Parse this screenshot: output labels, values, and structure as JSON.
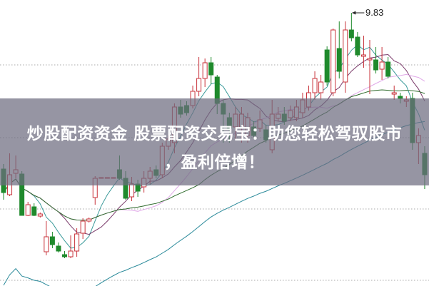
{
  "banner": {
    "line1": "炒股配资资金 股票配资交易宝：助您轻松驾驭股市",
    "line2": "，盈利倍增！"
  },
  "chart_data": {
    "type": "candlestick",
    "title": "",
    "xlabel": "",
    "ylabel": "",
    "ylim": [
      6.0,
      10.01
    ],
    "grid": "horizontal-dotted",
    "gridlines": [
      9.1,
      8.08,
      7.08,
      6.08
    ],
    "annotation": {
      "label": "9.83",
      "value": 9.83
    },
    "colors": {
      "up": "#c8323a",
      "down": "#1f8a2c"
    },
    "candles": [
      [
        7.64,
        7.71,
        7.21,
        7.31
      ],
      [
        7.28,
        7.86,
        7.26,
        7.56
      ],
      [
        7.58,
        7.83,
        7.51,
        7.63
      ],
      [
        7.57,
        7.61,
        6.99,
        6.99
      ],
      [
        6.99,
        7.18,
        6.98,
        7.14
      ],
      [
        7.11,
        7.16,
        6.98,
        6.99
      ],
      [
        6.98,
        7.03,
        6.96,
        7.01
      ],
      [
        6.48,
        6.91,
        6.43,
        6.69
      ],
      [
        6.69,
        6.76,
        6.53,
        6.58
      ],
      [
        6.56,
        6.61,
        6.47,
        6.49
      ],
      [
        6.44,
        6.49,
        6.39,
        6.41
      ],
      [
        6.41,
        6.71,
        6.39,
        6.49
      ],
      [
        6.49,
        6.81,
        6.41,
        6.73
      ],
      [
        6.74,
        6.95,
        6.66,
        6.91
      ],
      [
        6.91,
        6.96,
        6.89,
        6.94
      ],
      [
        7.24,
        7.54,
        7.14,
        7.51
      ],
      [
        7.51,
        7.52,
        7.51,
        7.52
      ],
      [
        7.51,
        7.52,
        7.51,
        7.52
      ],
      [
        7.51,
        7.52,
        7.51,
        7.52
      ],
      [
        7.63,
        7.83,
        7.49,
        7.51
      ],
      [
        7.51,
        7.61,
        7.21,
        7.23
      ],
      [
        7.25,
        7.53,
        7.19,
        7.43
      ],
      [
        7.43,
        7.49,
        7.25,
        7.33
      ],
      [
        7.39,
        7.61,
        7.31,
        7.51
      ],
      [
        7.51,
        7.67,
        7.43,
        7.61
      ],
      [
        7.63,
        7.69,
        7.51,
        7.55
      ],
      [
        7.56,
        8.01,
        7.51,
        7.96
      ],
      [
        7.96,
        8.11,
        7.91,
        8.06
      ],
      [
        8.01,
        8.56,
        7.86,
        8.51
      ],
      [
        8.51,
        8.61,
        8.36,
        8.41
      ],
      [
        8.53,
        8.59,
        8.39,
        8.43
      ],
      [
        8.53,
        8.81,
        8.49,
        8.73
      ],
      [
        8.73,
        9.21,
        8.66,
        8.91
      ],
      [
        8.91,
        9.19,
        8.79,
        9.13
      ],
      [
        9.13,
        9.21,
        8.83,
        8.96
      ],
      [
        8.93,
        8.96,
        8.41,
        8.56
      ],
      [
        8.56,
        8.61,
        8.01,
        8.41
      ],
      [
        8.36,
        8.43,
        8.01,
        8.21
      ],
      [
        8.23,
        8.51,
        8.06,
        8.41
      ],
      [
        8.21,
        8.51,
        8.01,
        8.41
      ],
      [
        8.11,
        8.43,
        8.01,
        8.36
      ],
      [
        8.23,
        8.31,
        8.06,
        8.11
      ],
      [
        8.21,
        8.46,
        8.16,
        8.33
      ],
      [
        8.19,
        8.26,
        8.01,
        8.05
      ],
      [
        7.91,
        8.61,
        7.86,
        8.41
      ],
      [
        8.35,
        8.51,
        8.31,
        8.41
      ],
      [
        8.41,
        8.51,
        8.26,
        8.31
      ],
      [
        8.36,
        8.53,
        8.31,
        8.46
      ],
      [
        8.36,
        8.61,
        8.31,
        8.51
      ],
      [
        8.43,
        8.71,
        8.36,
        8.61
      ],
      [
        8.51,
        8.81,
        8.46,
        8.71
      ],
      [
        8.71,
        9.01,
        8.61,
        8.91
      ],
      [
        8.71,
        8.96,
        8.61,
        8.86
      ],
      [
        9.31,
        9.36,
        8.81,
        8.86
      ],
      [
        8.71,
        9.61,
        8.66,
        9.59
      ],
      [
        9.33,
        9.71,
        8.91,
        9.01
      ],
      [
        8.86,
        9.71,
        8.71,
        9.59
      ],
      [
        9.59,
        9.83,
        9.43,
        9.48
      ],
      [
        9.49,
        9.56,
        9.21,
        9.24
      ],
      [
        9.22,
        9.51,
        9.06,
        9.24
      ],
      [
        9.17,
        9.45,
        8.69,
        9.19
      ],
      [
        9.17,
        9.35,
        8.98,
        9.03
      ],
      [
        9.04,
        9.35,
        8.89,
        9.14
      ],
      [
        9.14,
        9.21,
        8.91,
        8.94
      ],
      [
        8.69,
        8.81,
        8.61,
        8.71
      ],
      [
        8.66,
        8.71,
        8.56,
        8.63
      ],
      [
        8.59,
        8.66,
        8.51,
        8.61
      ],
      [
        8.63,
        8.71,
        7.91,
        8.01
      ],
      [
        8.01,
        8.21,
        7.71,
        8.11
      ],
      [
        7.86,
        7.96,
        7.36,
        7.56
      ]
    ],
    "candle_fields": [
      "open",
      "high",
      "low",
      "close"
    ],
    "moving_average_colors": [
      "#3a9a9a",
      "#7a3a6a",
      "#e0a8e8",
      "#2d6a2a",
      "#2a8a9a"
    ]
  }
}
